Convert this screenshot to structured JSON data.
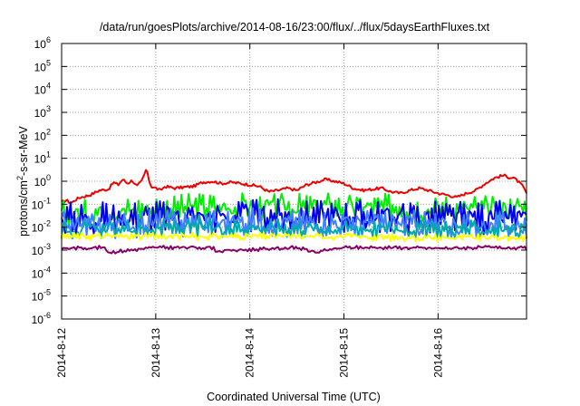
{
  "chart_data": {
    "type": "line",
    "title": "/data/run/goesPlots/archive/2014-08-16/23:00/flux/../flux/5daysEarthFluxes.txt",
    "xlabel": "Coordinated Universal Time (UTC)",
    "ylabel": {
      "prefix": "protons/cm",
      "sup": "2",
      "suffix": "-s-sr-MeV"
    },
    "x_unit": "days",
    "xlim": [
      0,
      4.94
    ],
    "x_ticks": [
      {
        "value": 0,
        "label": "2014-8-12"
      },
      {
        "value": 1,
        "label": "2014-8-13"
      },
      {
        "value": 2,
        "label": "2014-8-14"
      },
      {
        "value": 3,
        "label": "2014-8-15"
      },
      {
        "value": 4,
        "label": "2014-8-16"
      }
    ],
    "y_scale": "log",
    "ylim": [
      1e-06,
      1000000.0
    ],
    "y_ticks": [
      {
        "exp": -6,
        "label": "10",
        "sup": "-6"
      },
      {
        "exp": -5,
        "label": "10",
        "sup": "-5"
      },
      {
        "exp": -4,
        "label": "10",
        "sup": "-4"
      },
      {
        "exp": -3,
        "label": "10",
        "sup": "-3"
      },
      {
        "exp": -2,
        "label": "10",
        "sup": "-2"
      },
      {
        "exp": -1,
        "label": "10",
        "sup": "-1"
      },
      {
        "exp": 0,
        "label": "10",
        "sup": "0"
      },
      {
        "exp": 1,
        "label": "10",
        "sup": "1"
      },
      {
        "exp": 2,
        "label": "10",
        "sup": "2"
      },
      {
        "exp": 3,
        "label": "10",
        "sup": "3"
      },
      {
        "exp": 4,
        "label": "10",
        "sup": "4"
      },
      {
        "exp": 5,
        "label": "10",
        "sup": "5"
      },
      {
        "exp": 6,
        "label": "10",
        "sup": "6"
      }
    ],
    "grid": true,
    "series": [
      {
        "color": "#ee0000",
        "x": [
          0,
          0.05,
          0.1,
          0.15,
          0.2,
          0.3,
          0.4,
          0.5,
          0.55,
          0.6,
          0.65,
          0.7,
          0.75,
          0.8,
          0.85,
          0.88,
          0.9,
          0.92,
          0.95,
          1.0,
          1.05,
          1.1,
          1.2,
          1.3,
          1.4,
          1.5,
          1.6,
          1.7,
          1.8,
          1.9,
          2.0,
          2.1,
          2.2,
          2.3,
          2.4,
          2.5,
          2.6,
          2.7,
          2.8,
          2.9,
          3.0,
          3.1,
          3.2,
          3.3,
          3.4,
          3.5,
          3.6,
          3.7,
          3.8,
          3.9,
          4.0,
          4.1,
          4.2,
          4.3,
          4.4,
          4.5,
          4.6,
          4.65,
          4.7,
          4.75,
          4.8,
          4.85,
          4.9,
          4.94
        ],
        "y": [
          0.12,
          0.15,
          0.11,
          0.16,
          0.2,
          0.25,
          0.4,
          0.45,
          0.9,
          0.7,
          1.2,
          0.8,
          1.1,
          0.6,
          1.0,
          2.0,
          3.5,
          1.5,
          0.6,
          0.5,
          0.4,
          0.6,
          0.5,
          0.55,
          0.6,
          0.9,
          1.0,
          0.8,
          0.9,
          0.8,
          0.7,
          0.6,
          0.35,
          0.4,
          0.5,
          0.4,
          0.7,
          0.9,
          1.2,
          1.0,
          0.8,
          0.5,
          0.4,
          0.45,
          0.5,
          0.35,
          0.3,
          0.4,
          0.5,
          0.4,
          0.3,
          0.25,
          0.2,
          0.3,
          0.4,
          0.8,
          1.4,
          1.6,
          1.8,
          1.5,
          1.4,
          1.0,
          0.6,
          0.3
        ]
      },
      {
        "color": "#00ee00",
        "x": [
          0,
          0.2,
          0.4,
          0.6,
          0.8,
          1.0,
          1.2,
          1.4,
          1.6,
          1.8,
          2.0,
          2.2,
          2.4,
          2.6,
          2.8,
          3.0,
          3.2,
          3.4,
          3.6,
          3.8,
          4.0,
          4.2,
          4.4,
          4.6,
          4.8,
          4.94
        ],
        "y": [
          0.035,
          0.04,
          0.05,
          0.05,
          0.06,
          0.07,
          0.06,
          0.08,
          0.08,
          0.07,
          0.09,
          0.07,
          0.08,
          0.07,
          0.09,
          0.07,
          0.08,
          0.07,
          0.08,
          0.06,
          0.07,
          0.06,
          0.07,
          0.06,
          0.07,
          0.07
        ],
        "amp": 0.45
      },
      {
        "color": "#0000ee",
        "x": [
          0,
          0.5,
          1.0,
          1.5,
          2.0,
          2.5,
          3.0,
          3.5,
          4.0,
          4.5,
          4.94
        ],
        "y": [
          0.025,
          0.025,
          0.03,
          0.03,
          0.03,
          0.03,
          0.03,
          0.03,
          0.025,
          0.025,
          0.025
        ],
        "amp": 0.55
      },
      {
        "color": "#4080ff",
        "x": [
          0,
          0.5,
          1.0,
          1.5,
          2.0,
          2.5,
          3.0,
          3.5,
          4.0,
          4.5,
          4.94
        ],
        "y": [
          0.012,
          0.012,
          0.015,
          0.015,
          0.018,
          0.015,
          0.015,
          0.015,
          0.012,
          0.012,
          0.012
        ],
        "amp": 0.45
      },
      {
        "color": "#00aaaa",
        "x": [
          0,
          0.5,
          1.0,
          1.5,
          2.0,
          2.5,
          3.0,
          3.5,
          4.0,
          4.5,
          4.94
        ],
        "y": [
          0.008,
          0.008,
          0.009,
          0.009,
          0.01,
          0.009,
          0.009,
          0.009,
          0.008,
          0.008,
          0.008
        ],
        "amp": 0.3
      },
      {
        "color": "#ffff00",
        "x": [
          0,
          0.5,
          1.0,
          1.5,
          2.0,
          2.5,
          3.0,
          3.5,
          4.0,
          4.5,
          4.94
        ],
        "y": [
          0.004,
          0.004,
          0.004,
          0.004,
          0.004,
          0.004,
          0.004,
          0.0035,
          0.0035,
          0.0035,
          0.0035
        ],
        "amp": 0.12
      },
      {
        "color": "#880066",
        "x": [
          0,
          0.45,
          0.5,
          1.0,
          1.6,
          1.65,
          2.5,
          2.7,
          3.0,
          3.5,
          4.0,
          4.5,
          4.94
        ],
        "y": [
          0.0012,
          0.0013,
          0.0008,
          0.0013,
          0.0013,
          0.0009,
          0.0013,
          0.0008,
          0.0013,
          0.0013,
          0.0012,
          0.0013,
          0.0012
        ],
        "amp": 0.06
      }
    ]
  }
}
